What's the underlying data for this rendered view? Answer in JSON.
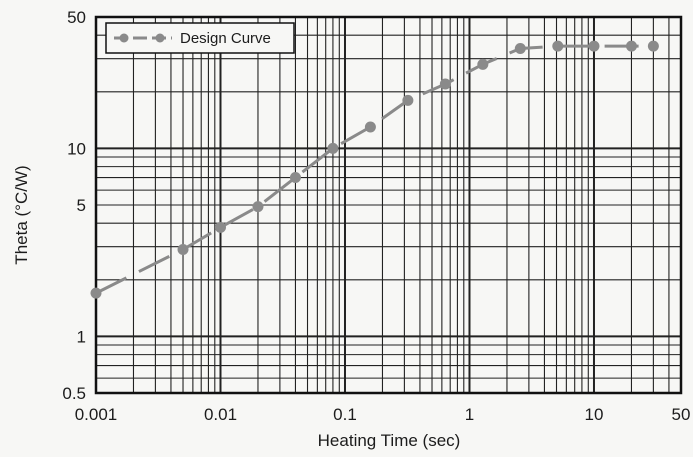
{
  "chart_data": {
    "type": "line",
    "title": "",
    "xlabel": "Heating Time (sec)",
    "ylabel": "Theta (°C/W)",
    "xscale": "log",
    "yscale": "log",
    "xlim": [
      0.001,
      50
    ],
    "ylim": [
      0.5,
      50
    ],
    "grid": true,
    "legend_position": "top-left",
    "x_ticks": [
      {
        "value": 0.001,
        "label": "0.001"
      },
      {
        "value": 0.01,
        "label": "0.01"
      },
      {
        "value": 0.1,
        "label": "0.1"
      },
      {
        "value": 1,
        "label": "1"
      },
      {
        "value": 10,
        "label": "10"
      },
      {
        "value": 50,
        "label": "50"
      }
    ],
    "y_ticks": [
      {
        "value": 0.5,
        "label": "0.5"
      },
      {
        "value": 1,
        "label": "1"
      },
      {
        "value": 5,
        "label": "5"
      },
      {
        "value": 10,
        "label": "10"
      },
      {
        "value": 50,
        "label": "50"
      }
    ],
    "series": [
      {
        "name": "Design Curve",
        "color": "#8a8a8a",
        "line_style": "dash-dot",
        "points": [
          {
            "x": 0.001,
            "y": 1.7
          },
          {
            "x": 0.005,
            "y": 2.9
          },
          {
            "x": 0.01,
            "y": 3.8
          },
          {
            "x": 0.02,
            "y": 4.9
          },
          {
            "x": 0.04,
            "y": 7.0
          },
          {
            "x": 0.08,
            "y": 10.0
          },
          {
            "x": 0.16,
            "y": 13.0
          },
          {
            "x": 0.32,
            "y": 18.0
          },
          {
            "x": 0.64,
            "y": 22.0
          },
          {
            "x": 1.28,
            "y": 28.0
          },
          {
            "x": 2.56,
            "y": 34.0
          },
          {
            "x": 5.12,
            "y": 35.0
          },
          {
            "x": 10,
            "y": 35.0
          },
          {
            "x": 20,
            "y": 35.0
          },
          {
            "x": 30,
            "y": 35.0
          }
        ]
      }
    ]
  }
}
